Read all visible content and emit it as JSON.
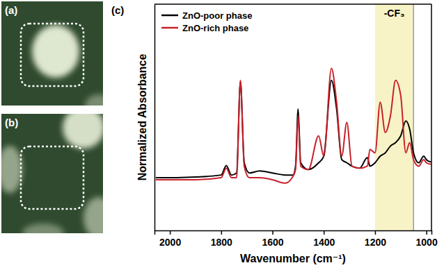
{
  "images": [
    {
      "label": "(a)"
    },
    {
      "label": "(b)"
    }
  ],
  "chart_data": {
    "type": "line",
    "annotations": [
      {
        "text": "(c)"
      },
      {
        "text": "-CF₃",
        "x_start": 1200,
        "x_end": 1050
      }
    ],
    "x_label": "Wavenumber (cm⁻¹)",
    "y_label": "Normalized Absorbance",
    "x": [
      2055,
      2000,
      1900,
      1800,
      1780,
      1760,
      1740,
      1725,
      1710,
      1690,
      1650,
      1600,
      1550,
      1520,
      1510,
      1500,
      1490,
      1460,
      1420,
      1400,
      1370,
      1350,
      1330,
      1310,
      1290,
      1260,
      1230,
      1220,
      1200,
      1180,
      1160,
      1140,
      1120,
      1100,
      1080,
      1065,
      1050,
      1030,
      1010,
      1000,
      985,
      982
    ],
    "series": [
      {
        "name": "ZnO-poor phase",
        "color": "#000000",
        "values": [
          23.3,
          23.3,
          23.6,
          24.5,
          28.7,
          24.5,
          25.4,
          65.7,
          29.9,
          25.4,
          26.3,
          25.4,
          24.5,
          24.5,
          28.4,
          53.7,
          29.9,
          26.9,
          29.9,
          32.8,
          66.3,
          53.7,
          31.3,
          29.9,
          28.4,
          27.5,
          32.2,
          28.4,
          29.9,
          32.8,
          34.3,
          37.3,
          38.8,
          41.8,
          48.4,
          44.8,
          34.3,
          29.9,
          32.8,
          31.3,
          30.4,
          30.4
        ]
      },
      {
        "name": "ZnO-rich phase",
        "color": "#c8202a",
        "values": [
          22.4,
          22.4,
          22.4,
          23.3,
          27.5,
          23.3,
          23.3,
          66.3,
          28.4,
          23.3,
          23.3,
          22.4,
          20.9,
          23.9,
          26.9,
          50.7,
          28.4,
          26.9,
          41.8,
          32.8,
          71.6,
          56.7,
          32.8,
          47.8,
          28.4,
          27.5,
          28.4,
          35.8,
          34.3,
          56.7,
          43.3,
          50.7,
          66.3,
          59.7,
          34.3,
          38.8,
          31.3,
          28.4,
          31.3,
          29.9,
          29.3,
          29.3
        ]
      }
    ],
    "xlim": [
      2060,
      980
    ],
    "xticks": [
      2000,
      1800,
      1600,
      1400,
      1200,
      1000
    ],
    "ylim": [
      0,
      100
    ],
    "yticks": [],
    "tick_labels": "x",
    "legend": "top-left"
  }
}
